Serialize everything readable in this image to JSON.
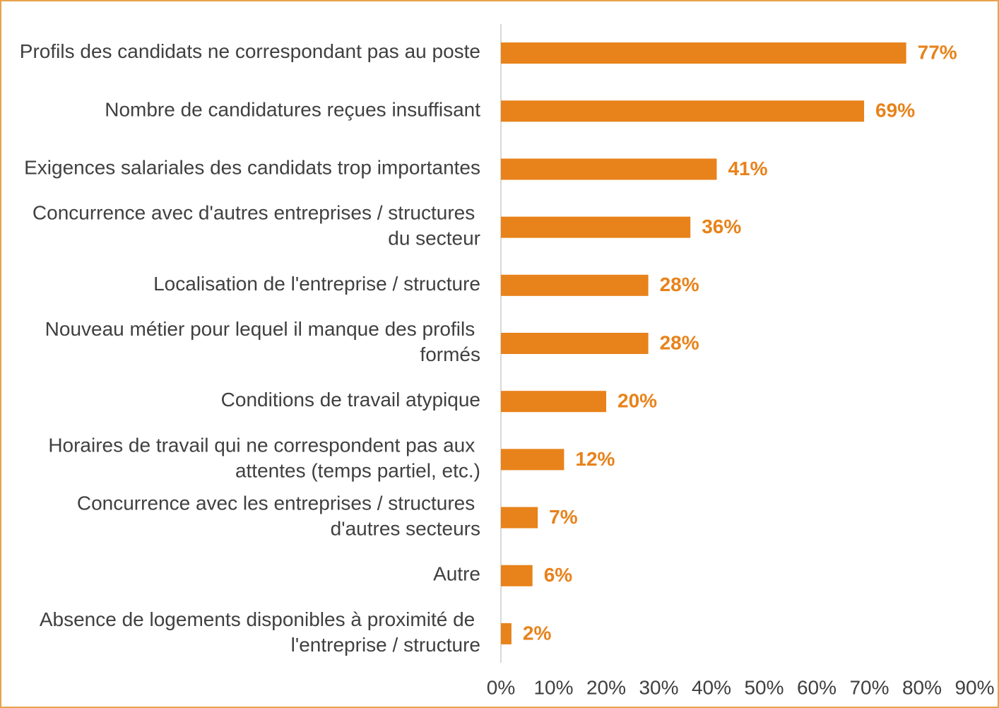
{
  "chart_data": {
    "type": "bar",
    "orientation": "horizontal",
    "categories": [
      "Profils des candidats ne correspondant pas au poste",
      "Nombre de candidatures reçues insuffisant",
      "Exigences salariales des candidats trop importantes",
      "Concurrence avec d'autres entreprises / structures du secteur",
      "Localisation de l'entreprise / structure",
      "Nouveau métier pour lequel il manque des profils formés",
      "Conditions de travail atypique",
      "Horaires de travail qui ne correspondent pas aux attentes (temps partiel, etc.)",
      "Concurrence avec les entreprises / structures d'autres secteurs",
      "Autre",
      "Absence de logements disponibles à proximité de l'entreprise / structure"
    ],
    "values": [
      77,
      69,
      41,
      36,
      28,
      28,
      20,
      12,
      7,
      6,
      2
    ],
    "value_labels": [
      "77%",
      "69%",
      "41%",
      "36%",
      "28%",
      "28%",
      "20%",
      "12%",
      "7%",
      "6%",
      "2%"
    ],
    "color": "#e8821a",
    "xlim": [
      0,
      90
    ],
    "xticks": [
      {
        "value": 0,
        "label": "0%"
      },
      {
        "value": 10,
        "label": "10%"
      },
      {
        "value": 20,
        "label": "20%"
      },
      {
        "value": 30,
        "label": "30%"
      },
      {
        "value": 40,
        "label": "40%"
      },
      {
        "value": 50,
        "label": "50%"
      },
      {
        "value": 60,
        "label": "60%"
      },
      {
        "value": 70,
        "label": "70%"
      },
      {
        "value": 80,
        "label": "80%"
      },
      {
        "value": 90,
        "label": "90%"
      }
    ],
    "grid": false
  }
}
